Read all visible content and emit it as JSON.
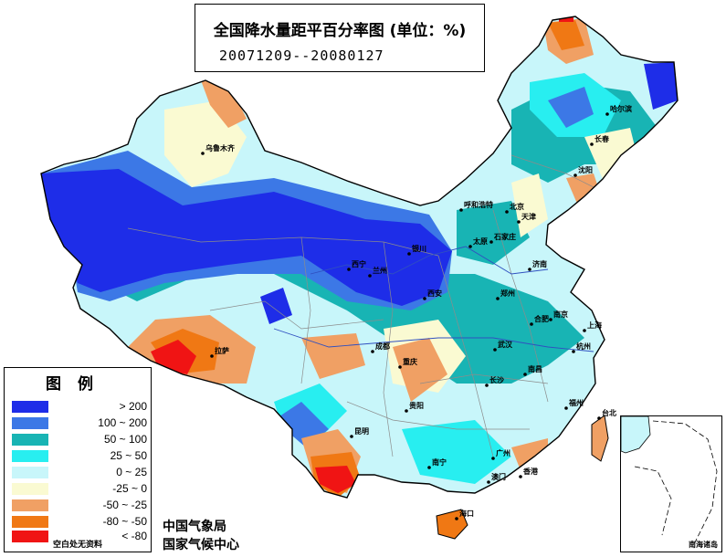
{
  "title": {
    "line1": "全国降水量距平百分率图 (单位：%)",
    "line2": "20071209--20080127"
  },
  "legend": {
    "title": "图例",
    "items": [
      {
        "label": "> 200",
        "color": "#1e2de8"
      },
      {
        "label": "100 ~ 200",
        "color": "#3c78e6"
      },
      {
        "label": "50 ~ 100",
        "color": "#18b4b4"
      },
      {
        "label": "25 ~ 50",
        "color": "#28eef0"
      },
      {
        "label": "0 ~ 25",
        "color": "#c8f6fa"
      },
      {
        "label": "-25 ~ 0",
        "color": "#fafad2"
      },
      {
        "label": "-50 ~ -25",
        "color": "#f0a064"
      },
      {
        "label": "-80 ~ -50",
        "color": "#f07814"
      },
      {
        "label": "< -80",
        "color": "#f01414"
      }
    ],
    "note": "空白处无资料"
  },
  "organizations": [
    "中国气象局",
    "国家气候中心"
  ],
  "inset_label": "南海诸岛",
  "cities": [
    {
      "name": "乌鲁木齐"
    },
    {
      "name": "哈尔滨"
    },
    {
      "name": "长春"
    },
    {
      "name": "沈阳"
    },
    {
      "name": "呼和浩特"
    },
    {
      "name": "北京"
    },
    {
      "name": "天津"
    },
    {
      "name": "石家庄"
    },
    {
      "name": "太原"
    },
    {
      "name": "济南"
    },
    {
      "name": "银川"
    },
    {
      "name": "西宁"
    },
    {
      "name": "兰州"
    },
    {
      "name": "西安"
    },
    {
      "name": "郑州"
    },
    {
      "name": "合肥"
    },
    {
      "name": "南京"
    },
    {
      "name": "上海"
    },
    {
      "name": "武汉"
    },
    {
      "name": "杭州"
    },
    {
      "name": "拉萨"
    },
    {
      "name": "成都"
    },
    {
      "name": "重庆"
    },
    {
      "name": "贵阳"
    },
    {
      "name": "长沙"
    },
    {
      "name": "南昌"
    },
    {
      "name": "福州"
    },
    {
      "name": "台北"
    },
    {
      "name": "昆明"
    },
    {
      "name": "南宁"
    },
    {
      "name": "广州"
    },
    {
      "name": "香港"
    },
    {
      "name": "澳门"
    },
    {
      "name": "海口"
    }
  ]
}
